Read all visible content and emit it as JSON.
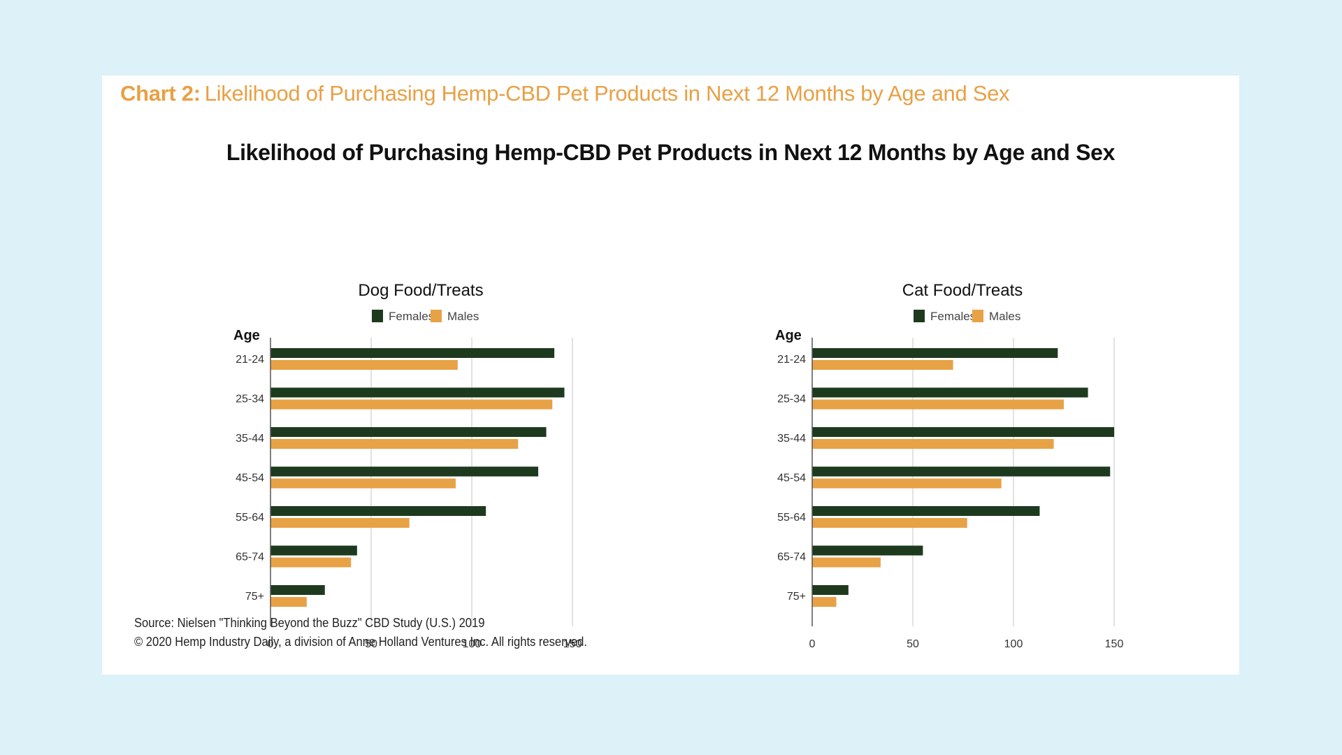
{
  "header": {
    "prefix": "Chart 2:",
    "title": "Likelihood of Purchasing Hemp-CBD Pet Products in Next 12 Months by Age and Sex"
  },
  "main_title": "Likelihood of Purchasing Hemp-CBD Pet Products in Next 12 Months by Age and Sex",
  "colors": {
    "females": "#1e3a1e",
    "males": "#e8a246",
    "header": "#e8a045",
    "background": "#dcf1f8",
    "grid": "#d9d9d9"
  },
  "chart_data": [
    {
      "type": "bar",
      "orientation": "horizontal",
      "title": "Dog Food/Treats",
      "ylabel": "Age",
      "xlabel": "",
      "categories": [
        "21-24",
        "25-34",
        "35-44",
        "45-54",
        "55-64",
        "65-74",
        "75+"
      ],
      "series": [
        {
          "name": "Females",
          "values": [
            141,
            146,
            137,
            133,
            107,
            43,
            27
          ]
        },
        {
          "name": "Males",
          "values": [
            93,
            140,
            123,
            92,
            69,
            40,
            18
          ]
        }
      ],
      "xlim": [
        0,
        150
      ],
      "xticks": [
        "0",
        "50",
        "100",
        "150"
      ],
      "legend": "top-center",
      "grid": "vertical"
    },
    {
      "type": "bar",
      "orientation": "horizontal",
      "title": "Cat Food/Treats",
      "ylabel": "Age",
      "xlabel": "",
      "categories": [
        "21-24",
        "25-34",
        "35-44",
        "45-54",
        "55-64",
        "65-74",
        "75+"
      ],
      "series": [
        {
          "name": "Females",
          "values": [
            122,
            137,
            150,
            148,
            113,
            55,
            18
          ]
        },
        {
          "name": "Males",
          "values": [
            70,
            125,
            120,
            94,
            77,
            34,
            12
          ]
        }
      ],
      "xlim": [
        0,
        150
      ],
      "xticks": [
        "0",
        "50",
        "100",
        "150"
      ],
      "legend": "top-center",
      "grid": "vertical"
    }
  ],
  "source": {
    "line1": "Source: Nielsen \"Thinking Beyond the Buzz\" CBD Study (U.S.) 2019",
    "line2": "© 2020 Hemp Industry Daily, a division of Anne Holland Ventures Inc. All rights reserved."
  }
}
